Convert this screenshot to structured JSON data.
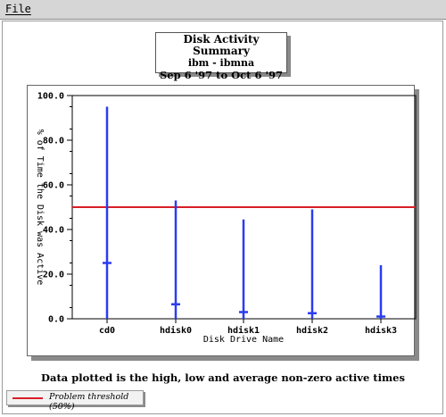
{
  "menubar": {
    "file_label": "File"
  },
  "title": {
    "line1": "Disk Activity Summary",
    "line2": "ibm - ibmna",
    "line3": "Sep 6 '97  to  Oct 6 '97"
  },
  "caption": "Data plotted is the high, low and average non-zero active times",
  "legend": {
    "label": "Problem threshold (50%)",
    "color": "#d81f26"
  },
  "chart_data": {
    "type": "range",
    "categories": [
      "cd0",
      "hdisk0",
      "hdisk1",
      "hdisk2",
      "hdisk3"
    ],
    "high": [
      95.0,
      53.0,
      44.5,
      49.0,
      24.0
    ],
    "low": [
      0.0,
      0.0,
      0.0,
      0.0,
      0.0
    ],
    "average": [
      25.0,
      6.5,
      3.0,
      2.5,
      1.0
    ],
    "threshold": 50.0,
    "xlabel": "Disk Drive Name",
    "ylabel": "% of Time the Disk was Active",
    "ylim": [
      0,
      100
    ],
    "yticks": [
      0,
      20,
      40,
      60,
      80,
      100
    ],
    "ytick_labels": [
      "0.0",
      "20.0",
      "40.0",
      "60.0",
      "80.0",
      "100.0"
    ],
    "series_color": "#2b3cf0",
    "threshold_color": "#d81f26"
  }
}
